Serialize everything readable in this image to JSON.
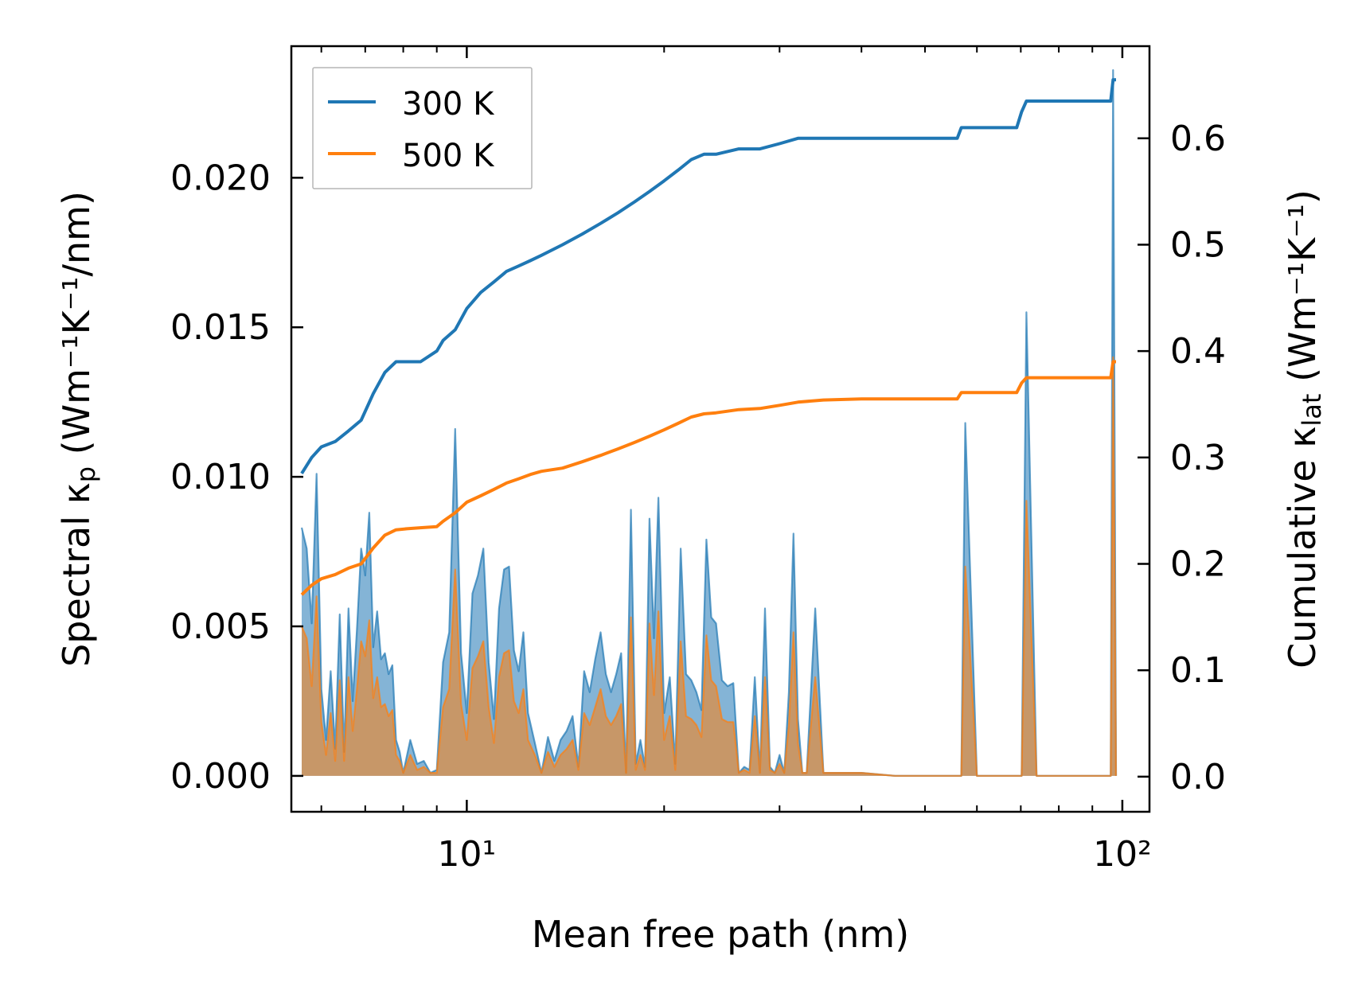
{
  "chart_data": {
    "type": "line",
    "xscale": "log",
    "xlim": [
      5.4,
      110
    ],
    "ylim_left": [
      -0.0012,
      0.0244
    ],
    "ylim_right": [
      -0.033,
      0.6866
    ],
    "xlabel": "Mean free path (nm)",
    "ylabel_left_prefix": "Spectral κ",
    "ylabel_left_sub": "p",
    "ylabel_left_suffix": " (Wm⁻¹K⁻¹/nm)",
    "ylabel_right_prefix": "Cumulative κ",
    "ylabel_right_sub": "lat",
    "ylabel_right_suffix": " (Wm⁻¹K⁻¹)",
    "xticks": [
      {
        "value": 10,
        "label": "10¹"
      },
      {
        "value": 100,
        "label": "10²"
      }
    ],
    "yticks_left": [
      0.0,
      0.005,
      0.01,
      0.015,
      0.02
    ],
    "ytick_labels_left": [
      "0.000",
      "0.005",
      "0.010",
      "0.015",
      "0.020"
    ],
    "yticks_right": [
      0.0,
      0.1,
      0.2,
      0.3,
      0.4,
      0.5,
      0.6
    ],
    "ytick_labels_right": [
      "0.0",
      "0.1",
      "0.2",
      "0.3",
      "0.4",
      "0.5",
      "0.6"
    ],
    "legend": {
      "position": "top-left",
      "entries": [
        "300 K",
        "500 K"
      ]
    },
    "colors": {
      "300 K": "#1f77b4",
      "500 K": "#ff7f0e"
    },
    "spectral": {
      "x": [
        5.6,
        5.7,
        5.8,
        5.9,
        6.0,
        6.1,
        6.2,
        6.3,
        6.4,
        6.5,
        6.6,
        6.7,
        6.8,
        6.9,
        7.0,
        7.1,
        7.2,
        7.3,
        7.4,
        7.5,
        7.6,
        7.7,
        7.8,
        7.9,
        8.0,
        8.2,
        8.4,
        8.6,
        8.8,
        9.0,
        9.2,
        9.4,
        9.6,
        9.8,
        10.0,
        10.2,
        10.4,
        10.6,
        10.8,
        11.0,
        11.2,
        11.4,
        11.6,
        11.8,
        12.0,
        12.2,
        12.4,
        12.7,
        13.0,
        13.3,
        13.6,
        13.9,
        14.2,
        14.5,
        14.8,
        15.1,
        15.4,
        15.7,
        16.0,
        16.3,
        16.6,
        16.9,
        17.2,
        17.5,
        17.8,
        18.1,
        18.4,
        18.7,
        19.0,
        19.3,
        19.6,
        20.0,
        20.4,
        20.8,
        21.2,
        21.6,
        22.0,
        22.4,
        22.8,
        23.2,
        23.6,
        24.0,
        24.5,
        25.0,
        25.5,
        26.0,
        26.5,
        27.0,
        27.5,
        28.0,
        28.5,
        29.0,
        29.5,
        30.0,
        30.5,
        31.0,
        31.5,
        32.0,
        32.5,
        33.0,
        34.0,
        35.0,
        40.0,
        45.0,
        50.0,
        55.0,
        56.0,
        56.8,
        57.6,
        60.0,
        65.0,
        69.0,
        70.2,
        71.4,
        74.0,
        80.0,
        90.0,
        96.0,
        96.8,
        97.8
      ],
      "300 K": [
        0.0083,
        0.0076,
        0.0051,
        0.0101,
        0.0029,
        0.0012,
        0.0035,
        0.0009,
        0.0054,
        0.0008,
        0.0056,
        0.0025,
        0.0049,
        0.0076,
        0.0067,
        0.0088,
        0.0043,
        0.0055,
        0.0039,
        0.0041,
        0.0034,
        0.0037,
        0.0012,
        0.0008,
        0.0001,
        0.0012,
        0.0004,
        0.0005,
        0.0001,
        0.0002,
        0.0038,
        0.0048,
        0.0116,
        0.0041,
        0.0021,
        0.0061,
        0.0067,
        0.0076,
        0.0038,
        0.0019,
        0.0056,
        0.0069,
        0.007,
        0.0042,
        0.0035,
        0.0048,
        0.0021,
        0.0011,
        0.0001,
        0.0013,
        0.0005,
        0.0012,
        0.0015,
        0.002,
        0.0003,
        0.0035,
        0.0028,
        0.0039,
        0.0048,
        0.0034,
        0.0028,
        0.0034,
        0.0041,
        0.0001,
        0.0089,
        0.0004,
        0.0012,
        0.0003,
        0.0086,
        0.0046,
        0.0093,
        0.0021,
        0.0033,
        0.0004,
        0.0076,
        0.0034,
        0.0032,
        0.0028,
        0.0022,
        0.0079,
        0.0053,
        0.0051,
        0.0032,
        0.003,
        0.0031,
        0.0001,
        0.0003,
        0.0002,
        0.0033,
        0.0001,
        0.0056,
        0.0003,
        0.0001,
        0.0007,
        0.0001,
        0.0028,
        0.0081,
        0.0019,
        0.0001,
        0.0001,
        0.0056,
        0.0001,
        0.0001,
        0.0,
        0.0,
        0.0,
        0.0,
        0.0,
        0.0118,
        0.0,
        0.0,
        0.0,
        0.0,
        0.0155,
        0.0,
        0.0,
        0.0,
        0.0,
        0.0236,
        0.0
      ],
      "500 K": [
        0.005,
        0.0046,
        0.003,
        0.006,
        0.0018,
        0.0007,
        0.0021,
        0.0005,
        0.0032,
        0.0005,
        0.0033,
        0.0015,
        0.0029,
        0.0045,
        0.004,
        0.0052,
        0.0026,
        0.0033,
        0.0023,
        0.0024,
        0.002,
        0.0022,
        0.0007,
        0.0005,
        0.0001,
        0.0007,
        0.0002,
        0.0003,
        0.0001,
        0.0001,
        0.0023,
        0.0029,
        0.0069,
        0.0024,
        0.0012,
        0.0036,
        0.004,
        0.0045,
        0.0023,
        0.0011,
        0.0033,
        0.0041,
        0.0042,
        0.0025,
        0.0021,
        0.0029,
        0.0012,
        0.0007,
        0.0001,
        0.0008,
        0.0003,
        0.0007,
        0.0009,
        0.0012,
        0.0002,
        0.0021,
        0.0017,
        0.0023,
        0.0029,
        0.002,
        0.0017,
        0.002,
        0.0024,
        0.0001,
        0.0053,
        0.0002,
        0.0007,
        0.0002,
        0.0051,
        0.0027,
        0.0055,
        0.0012,
        0.002,
        0.0002,
        0.0045,
        0.002,
        0.0019,
        0.0017,
        0.0013,
        0.0047,
        0.0032,
        0.003,
        0.0019,
        0.0018,
        0.0018,
        0.0001,
        0.0002,
        0.0001,
        0.002,
        0.0001,
        0.0033,
        0.0002,
        0.0001,
        0.0004,
        0.0001,
        0.0017,
        0.0048,
        0.0011,
        0.0001,
        0.0001,
        0.0033,
        0.0001,
        0.0001,
        0.0,
        0.0,
        0.0,
        0.0,
        0.0,
        0.007,
        0.0,
        0.0,
        0.0,
        0.0,
        0.0092,
        0.0,
        0.0,
        0.0,
        0.0,
        0.014,
        0.0
      ]
    },
    "cumulative": {
      "x": [
        5.6,
        5.8,
        6.0,
        6.3,
        6.6,
        6.9,
        7.2,
        7.5,
        7.8,
        8.1,
        8.5,
        9.0,
        9.2,
        9.6,
        10.0,
        10.5,
        11.0,
        11.5,
        12.0,
        12.5,
        13.0,
        14.0,
        15.0,
        16.0,
        17.0,
        18.0,
        19.0,
        20.0,
        21.0,
        22.0,
        23.0,
        24.0,
        26.0,
        28.0,
        30.0,
        32.0,
        35.0,
        40.0,
        45.0,
        50.0,
        55.0,
        56.0,
        56.8,
        60.0,
        65.0,
        69.0,
        70.2,
        71.4,
        80.0,
        90.0,
        96.0,
        96.8,
        97.8
      ],
      "300 K": [
        0.285,
        0.3,
        0.31,
        0.315,
        0.325,
        0.335,
        0.36,
        0.38,
        0.39,
        0.39,
        0.39,
        0.4,
        0.41,
        0.42,
        0.44,
        0.455,
        0.465,
        0.475,
        0.48,
        0.485,
        0.49,
        0.5,
        0.51,
        0.52,
        0.53,
        0.54,
        0.55,
        0.56,
        0.57,
        0.58,
        0.585,
        0.585,
        0.59,
        0.59,
        0.595,
        0.6,
        0.6,
        0.6,
        0.6,
        0.6,
        0.6,
        0.6,
        0.61,
        0.61,
        0.61,
        0.61,
        0.625,
        0.635,
        0.635,
        0.635,
        0.635,
        0.655,
        0.655
      ],
      "500 K": [
        0.171,
        0.18,
        0.186,
        0.19,
        0.196,
        0.2,
        0.215,
        0.227,
        0.232,
        0.233,
        0.234,
        0.235,
        0.24,
        0.248,
        0.258,
        0.264,
        0.27,
        0.276,
        0.28,
        0.284,
        0.287,
        0.29,
        0.296,
        0.302,
        0.308,
        0.314,
        0.32,
        0.326,
        0.332,
        0.338,
        0.341,
        0.342,
        0.345,
        0.346,
        0.349,
        0.352,
        0.354,
        0.355,
        0.355,
        0.355,
        0.355,
        0.355,
        0.361,
        0.361,
        0.361,
        0.361,
        0.37,
        0.375,
        0.375,
        0.375,
        0.375,
        0.39,
        0.39
      ]
    }
  }
}
